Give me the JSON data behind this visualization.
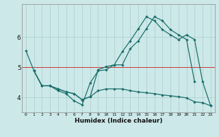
{
  "xlabel": "Humidex (Indice chaleur)",
  "bg_color": "#cce8e8",
  "line_color": "#1a6e6a",
  "red_line_y": 5.0,
  "red_line_color": "#cc3333",
  "xlim": [
    -0.5,
    23.5
  ],
  "ylim": [
    3.5,
    7.1
  ],
  "yticks": [
    4,
    5,
    6
  ],
  "xticks": [
    0,
    1,
    2,
    3,
    4,
    5,
    6,
    7,
    8,
    9,
    10,
    11,
    12,
    13,
    14,
    15,
    16,
    17,
    18,
    19,
    20,
    21,
    22,
    23
  ],
  "line1_x": [
    0,
    1,
    2,
    3,
    4,
    5,
    6,
    7,
    8,
    9,
    10,
    11,
    12,
    13,
    14,
    15,
    16,
    17,
    18,
    19,
    20,
    21
  ],
  "line1_y": [
    5.55,
    4.88,
    4.38,
    4.38,
    4.22,
    4.12,
    3.88,
    3.75,
    4.48,
    4.88,
    4.92,
    5.08,
    5.08,
    5.62,
    5.88,
    6.28,
    6.68,
    6.55,
    6.25,
    6.08,
    5.92,
    4.52
  ],
  "line2_x": [
    1,
    2,
    3,
    4,
    5,
    6,
    7,
    8,
    9,
    10,
    11,
    12,
    13,
    14,
    15,
    16,
    17,
    18,
    19,
    20,
    21,
    22,
    23
  ],
  "line2_y": [
    4.88,
    4.38,
    4.38,
    4.28,
    4.18,
    4.12,
    3.92,
    4.02,
    4.22,
    4.28,
    4.28,
    4.28,
    4.22,
    4.18,
    4.15,
    4.12,
    4.08,
    4.05,
    4.02,
    3.98,
    3.85,
    3.82,
    3.72
  ],
  "line3_x": [
    1,
    2,
    3,
    4,
    5,
    6,
    7,
    8,
    9,
    10,
    11,
    12,
    13,
    14,
    15,
    16,
    17,
    18,
    19,
    20,
    21,
    22,
    23
  ],
  "line3_y": [
    4.88,
    4.38,
    4.38,
    4.28,
    4.18,
    4.12,
    3.92,
    4.02,
    4.92,
    5.02,
    5.08,
    5.52,
    5.88,
    6.28,
    6.68,
    6.55,
    6.25,
    6.08,
    5.92,
    6.08,
    5.92,
    4.52,
    3.72
  ]
}
